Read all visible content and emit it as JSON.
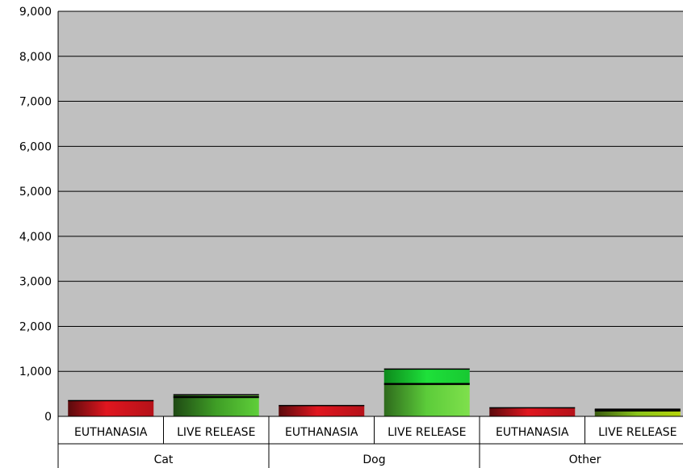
{
  "chart_data": {
    "type": "bar",
    "title": "",
    "xlabel": "",
    "ylabel": "",
    "ylim": [
      0,
      9000
    ],
    "yticks": [
      "0",
      "1,000",
      "2,000",
      "3,000",
      "4,000",
      "5,000",
      "6,000",
      "7,000",
      "8,000",
      "9,000"
    ],
    "grid": true,
    "groups": [
      "Cat",
      "Dog",
      "Other"
    ],
    "categories": [
      "EUTHANASIA",
      "LIVE RELEASE"
    ],
    "bars": [
      {
        "group": "Cat",
        "category": "EUTHANASIA",
        "segments": [
          {
            "value": 350,
            "color": "#c8141e"
          }
        ]
      },
      {
        "group": "Cat",
        "category": "LIVE RELEASE",
        "segments": [
          {
            "value": 430,
            "color": "#2f8a1a"
          },
          {
            "value": 50,
            "color": "#111111"
          }
        ]
      },
      {
        "group": "Dog",
        "category": "EUTHANASIA",
        "segments": [
          {
            "value": 240,
            "color": "#c8141e"
          }
        ]
      },
      {
        "group": "Dog",
        "category": "LIVE RELEASE",
        "segments": [
          {
            "value": 720,
            "color": "#44b828"
          },
          {
            "value": 330,
            "color": "#17c930"
          }
        ]
      },
      {
        "group": "Other",
        "category": "EUTHANASIA",
        "segments": [
          {
            "value": 190,
            "color": "#c8141e"
          }
        ]
      },
      {
        "group": "Other",
        "category": "LIVE RELEASE",
        "segments": [
          {
            "value": 130,
            "color": "#6a9e1a"
          },
          {
            "value": 30,
            "color": "#b5d40a"
          }
        ]
      }
    ],
    "colors": {
      "plot_bg": "#c0c0c0",
      "grid": "#000000"
    }
  }
}
